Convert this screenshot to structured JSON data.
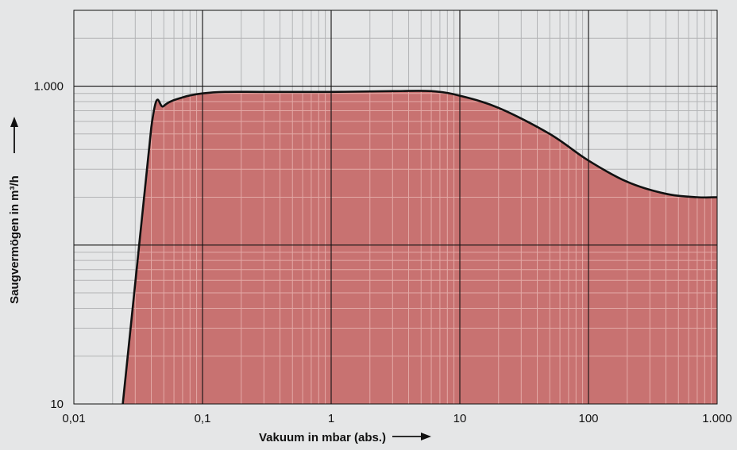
{
  "chart_data": {
    "type": "area",
    "title": "",
    "xlabel": "Vakuum in mbar (abs.)",
    "ylabel": "Saugvermögen in m³/h",
    "x_scale": "log",
    "y_scale": "log",
    "xlim": [
      0.01,
      1000
    ],
    "ylim": [
      10,
      3000
    ],
    "x_ticks": [
      0.01,
      0.1,
      1,
      10,
      100,
      1000
    ],
    "x_tick_labels": [
      "0,01",
      "0,1",
      "1",
      "10",
      "100",
      "1.000"
    ],
    "y_ticks": [
      10,
      1000
    ],
    "y_tick_labels": [
      "10",
      "1.000"
    ],
    "grid": true,
    "fill_color": "#c87271",
    "line_color": "#111111",
    "background_color": "#e5e6e7",
    "series": [
      {
        "x": [
          0.024,
          0.04,
          0.05,
          0.07,
          0.1,
          0.15,
          0.3,
          1,
          3,
          6,
          10,
          20,
          50,
          100,
          200,
          400,
          700,
          1000
        ],
        "values": [
          10,
          550,
          750,
          850,
          900,
          920,
          920,
          920,
          930,
          930,
          870,
          730,
          500,
          340,
          250,
          210,
          200,
          200
        ]
      }
    ]
  }
}
